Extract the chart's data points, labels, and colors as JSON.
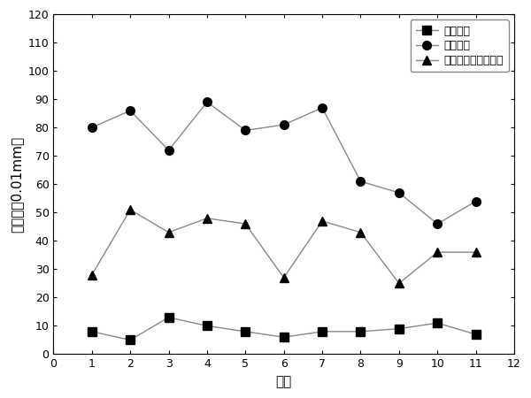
{
  "x": [
    1,
    2,
    3,
    4,
    5,
    6,
    7,
    8,
    9,
    10,
    11
  ],
  "series1_name": "碎石化前",
  "series1_values": [
    8,
    5,
    13,
    10,
    8,
    6,
    8,
    8,
    9,
    11,
    7
  ],
  "series1_marker": "s",
  "series1_color": "#000000",
  "series2_name": "碎石化后",
  "series2_values": [
    80,
    86,
    72,
    89,
    79,
    81,
    87,
    61,
    57,
    46,
    54
  ],
  "series2_marker": "o",
  "series2_color": "#000000",
  "series3_name": "洒布碎石纤维封层后",
  "series3_values": [
    28,
    51,
    43,
    48,
    46,
    27,
    47,
    43,
    25,
    36,
    36
  ],
  "series3_marker": "^",
  "series3_color": "#000000",
  "xlabel": "测点",
  "ylabel": "弯沉值（0.01mm）",
  "xlim": [
    0,
    12
  ],
  "ylim": [
    0,
    120
  ],
  "yticks": [
    0,
    10,
    20,
    30,
    40,
    50,
    60,
    70,
    80,
    90,
    100,
    110,
    120
  ],
  "xticks": [
    0,
    1,
    2,
    3,
    4,
    5,
    6,
    7,
    8,
    9,
    10,
    11,
    12
  ],
  "line_color": "#888888",
  "markersize": 7,
  "linewidth": 1.0,
  "legend_loc": "upper right",
  "legend_fontsize": 9,
  "axis_label_fontsize": 11,
  "tick_fontsize": 9
}
